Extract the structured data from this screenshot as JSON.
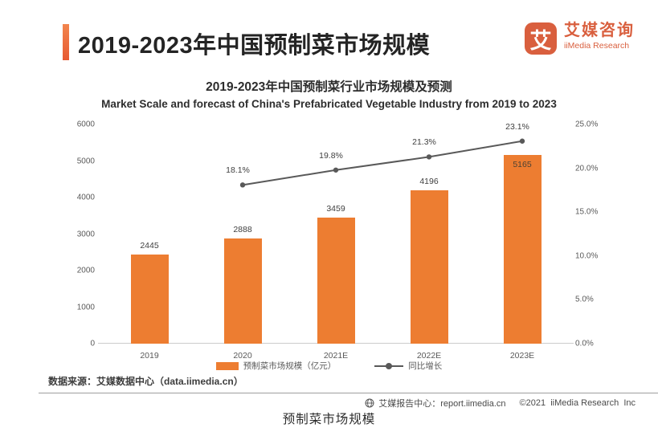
{
  "header": {
    "title": "2019-2023年中国预制菜市场规模"
  },
  "brand": {
    "glyph": "艾",
    "name_cn": "艾媒咨询",
    "name_en": "iiMedia Research",
    "color": "#D95F3E"
  },
  "chart_data": {
    "type": "bar",
    "combo_line": true,
    "title": "2019-2023年中国预制菜行业市场规模及预测",
    "subtitle": "Market Scale and forecast of China's Prefabricated Vegetable Industry from 2019 to 2023",
    "categories": [
      "2019",
      "2020",
      "2021E",
      "2022E",
      "2023E"
    ],
    "series": [
      {
        "name": "预制菜市场规模（亿元）",
        "type": "bar",
        "color": "#ED7D31",
        "values": [
          2445,
          2888,
          3459,
          4196,
          5165
        ],
        "label_inside": [
          false,
          false,
          false,
          false,
          true
        ]
      },
      {
        "name": "同比增长",
        "type": "line",
        "color": "#595959",
        "values": [
          null,
          18.1,
          19.8,
          21.3,
          23.1
        ],
        "labels": [
          "",
          "18.1%",
          "19.8%",
          "21.3%",
          "23.1%"
        ]
      }
    ],
    "left_axis": {
      "min": 0,
      "max": 6000,
      "ticks": [
        0,
        1000,
        2000,
        3000,
        4000,
        5000,
        6000
      ]
    },
    "right_axis": {
      "min": 0,
      "max": 25,
      "ticks": [
        "0.0%",
        "5.0%",
        "10.0%",
        "15.0%",
        "20.0%",
        "25.0%"
      ]
    },
    "grid": false,
    "legend_position": "bottom"
  },
  "source": {
    "text": "数据来源：艾媒数据中心（data.iimedia.cn）"
  },
  "footer": {
    "report_center": "艾媒报告中心：report.iimedia.cn",
    "copyright": "©2021  iiMedia Research  Inc"
  },
  "caption": {
    "text": "预制菜市场规模"
  }
}
